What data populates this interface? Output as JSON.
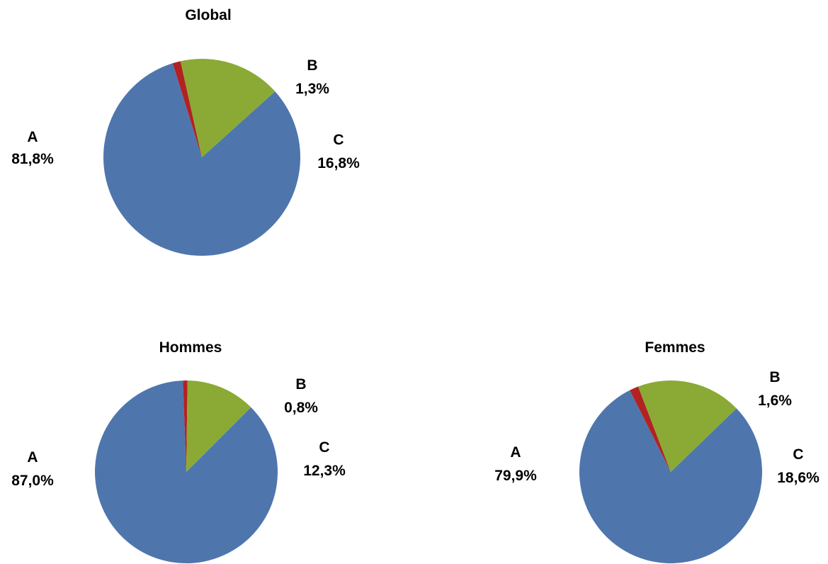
{
  "chart_data": [
    {
      "type": "pie",
      "title": "Global",
      "slices": [
        {
          "label": "A",
          "value": 81.8,
          "display": "81,8%",
          "color": "#4E76AD"
        },
        {
          "label": "B",
          "value": 1.3,
          "display": "1,3%",
          "color": "#B22222"
        },
        {
          "label": "C",
          "value": 16.8,
          "display": "16,8%",
          "color": "#8AAA35"
        }
      ]
    },
    {
      "type": "pie",
      "title": "Hommes",
      "slices": [
        {
          "label": "A",
          "value": 87.0,
          "display": "87,0%",
          "color": "#4E76AD"
        },
        {
          "label": "B",
          "value": 0.8,
          "display": "0,8%",
          "color": "#B22222"
        },
        {
          "label": "C",
          "value": 12.3,
          "display": "12,3%",
          "color": "#8AAA35"
        }
      ]
    },
    {
      "type": "pie",
      "title": "Femmes",
      "slices": [
        {
          "label": "A",
          "value": 79.9,
          "display": "79,9%",
          "color": "#4E76AD"
        },
        {
          "label": "B",
          "value": 1.6,
          "display": "1,6%",
          "color": "#B22222"
        },
        {
          "label": "C",
          "value": 18.6,
          "display": "18,6%",
          "color": "#8AAA35"
        }
      ]
    }
  ]
}
